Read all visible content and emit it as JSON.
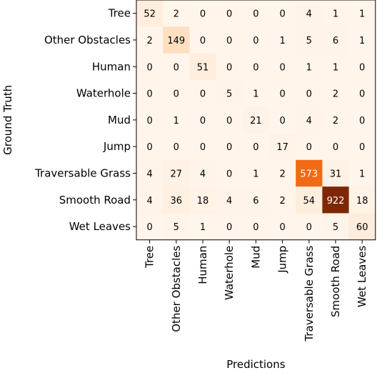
{
  "chart_data": {
    "type": "heatmap",
    "title": "",
    "xlabel": "Predictions",
    "ylabel": "Ground Truth",
    "x_categories": [
      "Tree",
      "Other Obstacles",
      "Human",
      "Waterhole",
      "Mud",
      "Jump",
      "Traversable Grass",
      "Smooth Road",
      "Wet Leaves"
    ],
    "y_categories": [
      "Tree",
      "Other Obstacles",
      "Human",
      "Waterhole",
      "Mud",
      "Jump",
      "Traversable Grass",
      "Smooth Road",
      "Wet Leaves"
    ],
    "values": [
      [
        52,
        2,
        0,
        0,
        0,
        0,
        4,
        1,
        1
      ],
      [
        2,
        149,
        0,
        0,
        0,
        1,
        5,
        6,
        1
      ],
      [
        0,
        0,
        51,
        0,
        0,
        0,
        1,
        1,
        0
      ],
      [
        0,
        0,
        0,
        5,
        1,
        0,
        0,
        2,
        0
      ],
      [
        0,
        1,
        0,
        0,
        21,
        0,
        4,
        2,
        0
      ],
      [
        0,
        0,
        0,
        0,
        0,
        17,
        0,
        0,
        0
      ],
      [
        4,
        27,
        4,
        0,
        1,
        2,
        573,
        31,
        1
      ],
      [
        4,
        36,
        18,
        4,
        6,
        2,
        54,
        922,
        18
      ],
      [
        0,
        5,
        1,
        0,
        0,
        0,
        0,
        5,
        60
      ]
    ],
    "value_range": [
      0,
      922
    ],
    "colormap": "Oranges",
    "grid": false,
    "legend": "none"
  }
}
